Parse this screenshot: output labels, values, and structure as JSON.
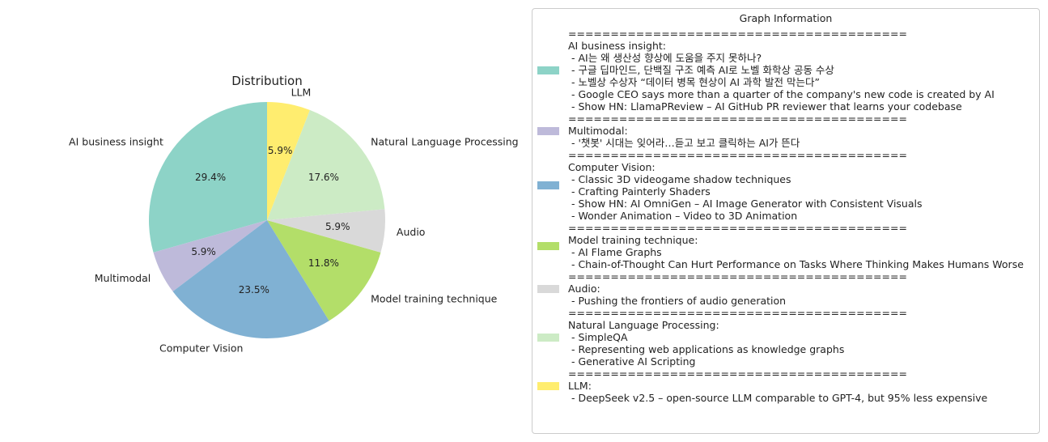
{
  "chart_data": {
    "type": "pie",
    "title": "Distribution",
    "start_angle_deg": 90,
    "direction": "counterclockwise",
    "categories": [
      "AI business insight",
      "Multimodal",
      "Computer Vision",
      "Model training technique",
      "Audio",
      "Natural Language Processing",
      "LLM"
    ],
    "values": [
      29.4,
      5.9,
      23.5,
      11.8,
      5.9,
      17.6,
      5.9
    ],
    "counts": [
      5,
      1,
      4,
      2,
      1,
      3,
      1
    ],
    "value_labels": [
      "29.4%",
      "5.9%",
      "23.5%",
      "11.8%",
      "5.9%",
      "17.6%",
      "5.9%"
    ],
    "colors": [
      "#8dd3c7",
      "#bebada",
      "#80b1d3",
      "#b3de69",
      "#d9d9d9",
      "#ccebc5",
      "#ffed6f"
    ]
  },
  "legend": {
    "title": "Graph Information",
    "separator": "========================================",
    "entries": [
      {
        "name": "AI business insight:",
        "color": "#8dd3c7",
        "items": [
          " - AI는 왜 생산성 향상에 도움을 주지 못하나?",
          " - 구글 딥마인드, 단백질 구조 예측 AI로 노벨 화학상 공동 수상",
          " - 노벨상 수상자 “데이터 병목 현상이 AI 과학 발전 막는다”",
          " - Google CEO says more than a quarter of the company's new code is created by AI",
          " - Show HN: LlamaPReview – AI GitHub PR reviewer that learns your codebase"
        ]
      },
      {
        "name": "Multimodal:",
        "color": "#bebada",
        "items": [
          " - '챗봇' 시대는 잊어라…듣고 보고 클릭하는 AI가 뜬다"
        ]
      },
      {
        "name": "Computer Vision:",
        "color": "#80b1d3",
        "items": [
          " - Classic 3D videogame shadow techniques",
          " - Crafting Painterly Shaders",
          " - Show HN: AI OmniGen – AI Image Generator with Consistent Visuals",
          " - Wonder Animation – Video to 3D Animation"
        ]
      },
      {
        "name": "Model training technique:",
        "color": "#b3de69",
        "items": [
          " - AI Flame Graphs",
          " - Chain-of-Thought Can Hurt Performance on Tasks Where Thinking Makes Humans Worse"
        ]
      },
      {
        "name": "Audio:",
        "color": "#d9d9d9",
        "items": [
          " - Pushing the frontiers of audio generation"
        ]
      },
      {
        "name": "Natural Language Processing:",
        "color": "#ccebc5",
        "items": [
          " - SimpleQA",
          " - Representing web applications as knowledge graphs",
          " - Generative AI Scripting"
        ]
      },
      {
        "name": "LLM:",
        "color": "#ffed6f",
        "items": [
          " - DeepSeek v2.5 – open-source LLM comparable to GPT-4, but 95% less expensive"
        ]
      }
    ]
  }
}
